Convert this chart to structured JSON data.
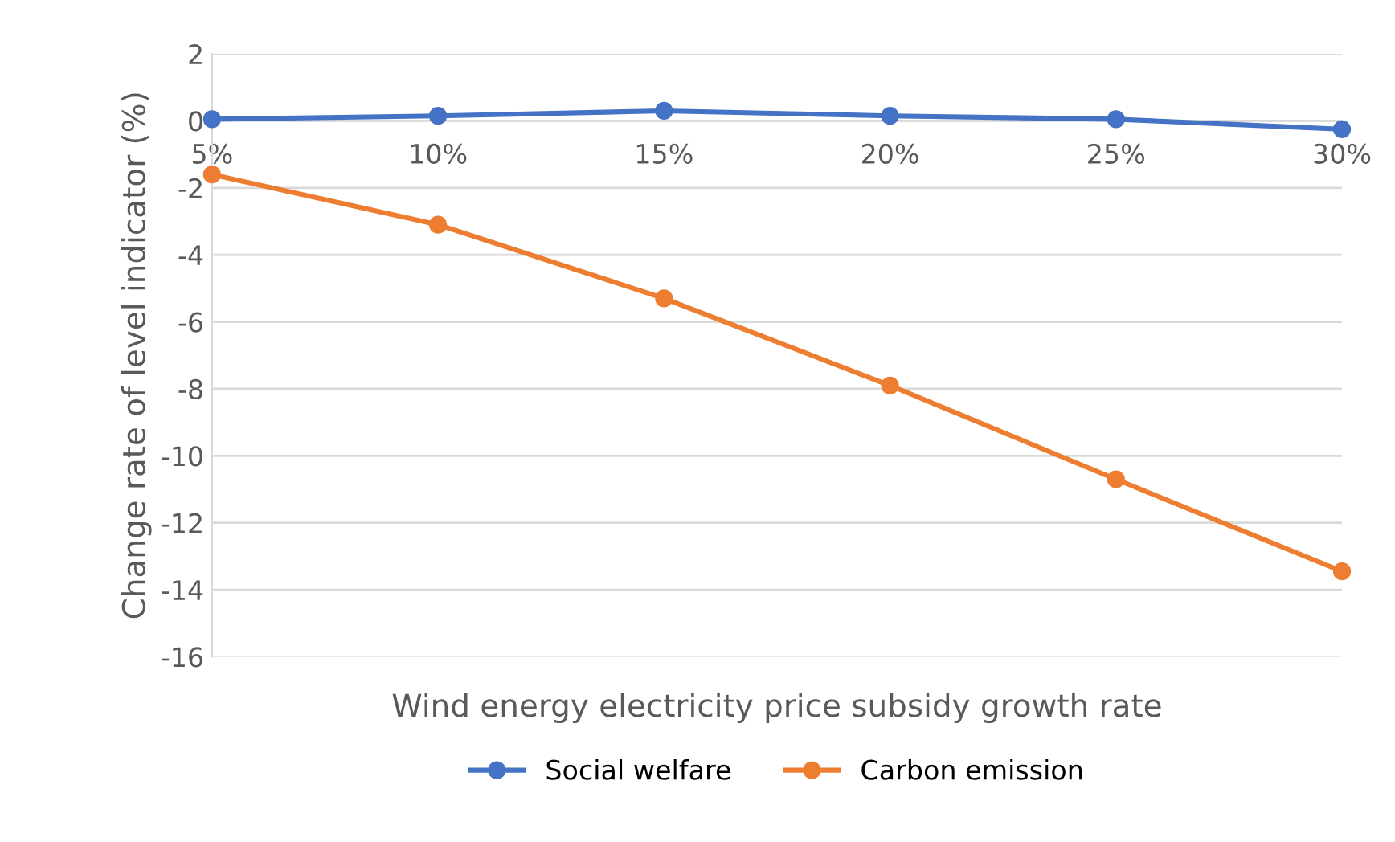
{
  "chart_data": {
    "type": "line",
    "categories": [
      "5%",
      "10%",
      "15%",
      "20%",
      "25%",
      "30%"
    ],
    "series": [
      {
        "name": "Social welfare",
        "color": "#4472c4",
        "values": [
          0.05,
          0.15,
          0.3,
          0.15,
          0.05,
          -0.25
        ]
      },
      {
        "name": "Carbon emission",
        "color": "#ed7d31",
        "values": [
          -1.6,
          -3.1,
          -5.3,
          -7.9,
          -10.7,
          -13.45
        ]
      }
    ],
    "xlabel": "Wind energy electricity price subsidy growth rate",
    "ylabel": "Change rate of level indicator (%)",
    "ylim": [
      -16,
      2
    ],
    "yticks": [
      -16,
      -14,
      -12,
      -10,
      -8,
      -6,
      -4,
      -2,
      0,
      2
    ],
    "grid": "y",
    "legend": "bottom",
    "marker": "circle",
    "line_style": "solid"
  }
}
